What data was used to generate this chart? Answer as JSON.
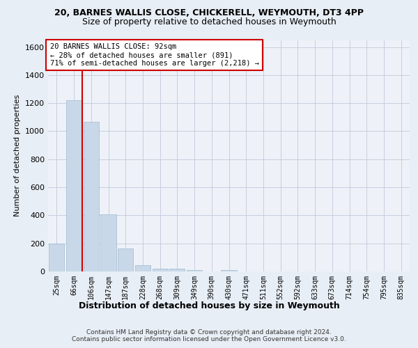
{
  "title1": "20, BARNES WALLIS CLOSE, CHICKERELL, WEYMOUTH, DT3 4PP",
  "title2": "Size of property relative to detached houses in Weymouth",
  "xlabel": "Distribution of detached houses by size in Weymouth",
  "ylabel": "Number of detached properties",
  "categories": [
    "25sqm",
    "66sqm",
    "106sqm",
    "147sqm",
    "187sqm",
    "228sqm",
    "268sqm",
    "309sqm",
    "349sqm",
    "390sqm",
    "430sqm",
    "471sqm",
    "511sqm",
    "552sqm",
    "592sqm",
    "633sqm",
    "673sqm",
    "714sqm",
    "754sqm",
    "795sqm",
    "835sqm"
  ],
  "values": [
    200,
    1220,
    1065,
    405,
    163,
    45,
    22,
    18,
    12,
    0,
    12,
    0,
    0,
    0,
    0,
    0,
    0,
    0,
    0,
    0,
    0
  ],
  "bar_color": "#c8d8e8",
  "bar_edge_color": "#a0b8d0",
  "property_line_color": "#cc0000",
  "property_line_x": 1.5,
  "annotation_text": "20 BARNES WALLIS CLOSE: 92sqm\n← 28% of detached houses are smaller (891)\n71% of semi-detached houses are larger (2,218) →",
  "annotation_box_color": "#ffffff",
  "annotation_box_edge": "#cc0000",
  "ylim": [
    0,
    1650
  ],
  "yticks": [
    0,
    200,
    400,
    600,
    800,
    1000,
    1200,
    1400,
    1600
  ],
  "footer": "Contains HM Land Registry data © Crown copyright and database right 2024.\nContains public sector information licensed under the Open Government Licence v3.0.",
  "bg_color": "#e8eef5",
  "plot_bg": "#eef2f8",
  "title1_fontsize": 9,
  "title2_fontsize": 9,
  "ylabel_fontsize": 8,
  "xlabel_fontsize": 9,
  "tick_fontsize": 7,
  "footer_fontsize": 6.5,
  "ann_fontsize": 7.5
}
